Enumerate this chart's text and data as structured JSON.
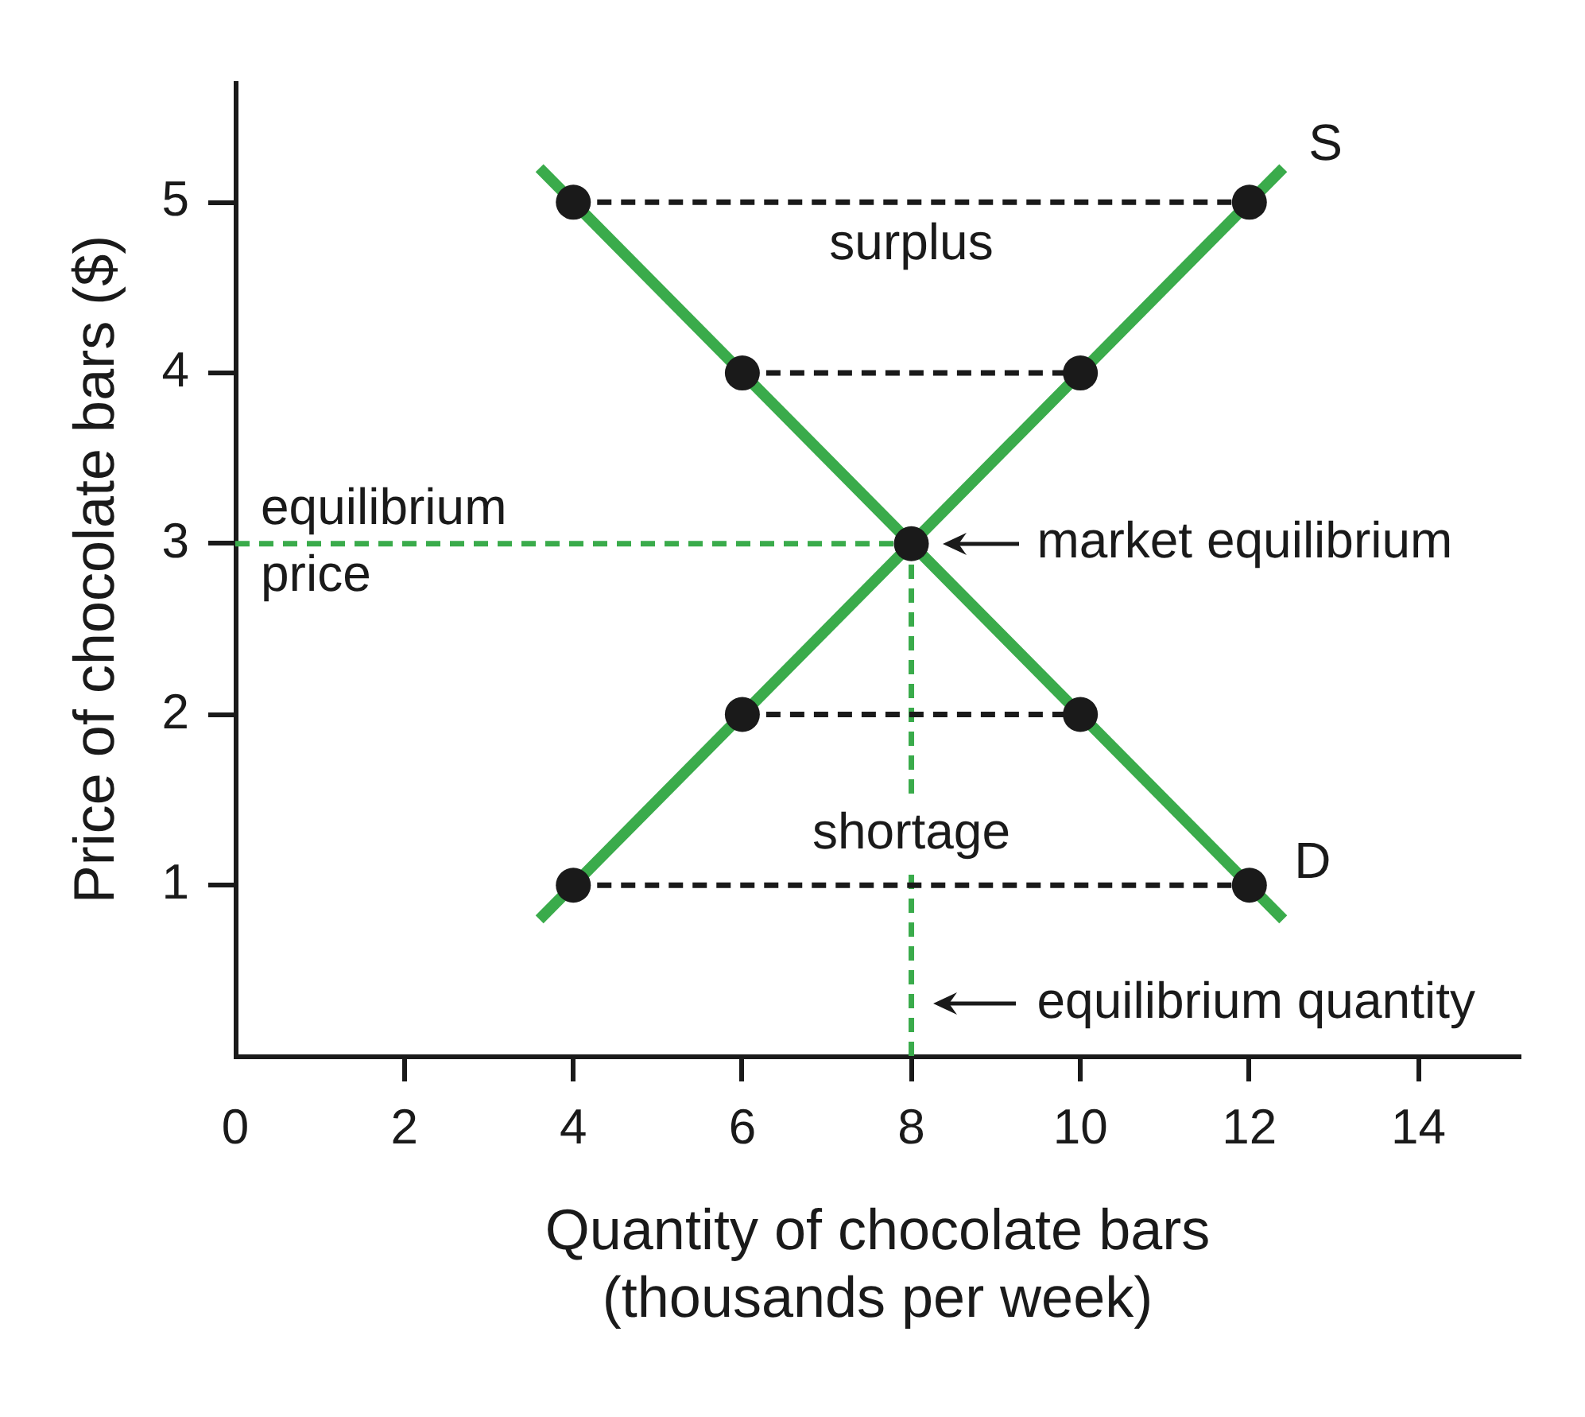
{
  "chart_data": {
    "type": "line",
    "xlabel": "Quantity of chocolate bars (thousands per week)",
    "ylabel": "Price of chocolate bars ($)",
    "xlim": [
      0,
      15.2
    ],
    "ylim": [
      0,
      5.7
    ],
    "xticks": [
      0,
      2,
      4,
      6,
      8,
      10,
      12,
      14
    ],
    "yticks": [
      1,
      2,
      3,
      4,
      5
    ],
    "series": [
      {
        "name": "S",
        "color": "#3aab4b",
        "x": [
          3.6,
          12.4
        ],
        "values": [
          0.8,
          5.2
        ]
      },
      {
        "name": "D",
        "color": "#3aab4b",
        "x": [
          3.6,
          12.4
        ],
        "values": [
          5.2,
          0.8
        ]
      },
      {
        "color": "#1a1a1a",
        "line_style": "dashed",
        "x": [
          4,
          12
        ],
        "values": [
          5,
          5
        ]
      },
      {
        "color": "#1a1a1a",
        "line_style": "dashed",
        "x": [
          6,
          10
        ],
        "values": [
          4,
          4
        ]
      },
      {
        "color": "#1a1a1a",
        "line_style": "dashed",
        "x": [
          6,
          10
        ],
        "values": [
          2,
          2
        ]
      },
      {
        "color": "#1a1a1a",
        "line_style": "dashed",
        "x": [
          4,
          12
        ],
        "values": [
          1,
          1
        ]
      },
      {
        "type": "scatter",
        "color": "#1a1a1a",
        "marker": "circle",
        "x": [
          4,
          12,
          6,
          10,
          8,
          6,
          10,
          4,
          12
        ],
        "values": [
          5,
          5,
          4,
          4,
          3,
          2,
          2,
          1,
          1
        ]
      }
    ],
    "ref_lines": [
      {
        "axis": "y",
        "value": 3,
        "label": "equilibrium price",
        "color": "#3aab4b",
        "line_style": "dashed"
      },
      {
        "axis": "x",
        "value": 8,
        "label": "equilibrium quantity",
        "color": "#3aab4b",
        "line_style": "dashed"
      }
    ],
    "annotations": [
      "surplus",
      {
        "text": "market equilibrium",
        "x": 8,
        "y": 3
      },
      "shortage"
    ]
  }
}
